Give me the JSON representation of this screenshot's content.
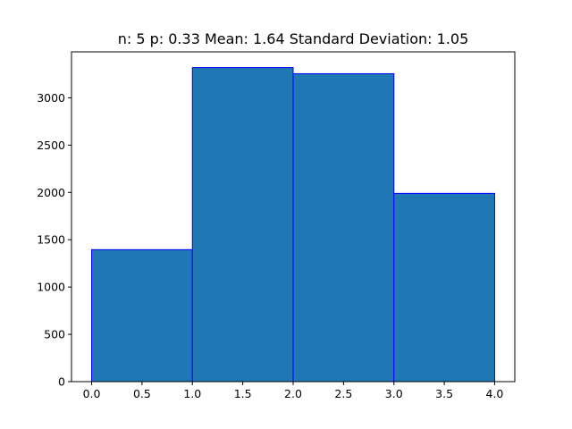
{
  "chart_data": {
    "type": "bar",
    "title": "n: 5 p: 0.33 Mean: 1.64 Standard Deviation: 1.05",
    "xlabel": "",
    "ylabel": "",
    "bins": [
      {
        "x0": 0.0,
        "x1": 1.0,
        "value": 1395
      },
      {
        "x0": 1.0,
        "x1": 2.0,
        "value": 3320
      },
      {
        "x0": 2.0,
        "x1": 3.0,
        "value": 3255
      },
      {
        "x0": 3.0,
        "x1": 4.0,
        "value": 1990
      }
    ],
    "xlim": [
      -0.2,
      4.2
    ],
    "ylim": [
      0,
      3486
    ],
    "x_ticks": [
      "0.0",
      "0.5",
      "1.0",
      "1.5",
      "2.0",
      "2.5",
      "3.0",
      "3.5",
      "4.0"
    ],
    "y_ticks": [
      "0",
      "500",
      "1000",
      "1500",
      "2000",
      "2500",
      "3000"
    ],
    "grid": false,
    "bar_fill": "#1f77b4",
    "bar_edge": "#0000ff"
  }
}
